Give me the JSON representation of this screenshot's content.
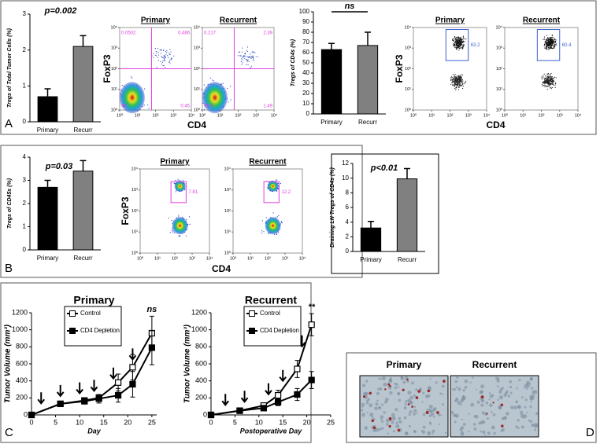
{
  "panel_labels": [
    "A",
    "B",
    "C",
    "D"
  ],
  "chart_data": [
    {
      "type": "bar",
      "ylabel": "Tregs of Total Tumor Cells (%)",
      "annotation": "p=0.002",
      "categories": [
        "Primary",
        "Recurr"
      ],
      "values": [
        0.7,
        2.1
      ],
      "errors": [
        0.22,
        0.3
      ],
      "colors": [
        "#000000",
        "#808080"
      ],
      "ylim": [
        0,
        3
      ],
      "yticks": [
        0,
        1,
        2,
        3
      ]
    },
    {
      "type": "flow",
      "xlabel": "CD4",
      "ylabel": "FoxP3",
      "log": true,
      "plot_style": "density",
      "gate": "quadrant",
      "gate_color": "#e040e0",
      "xlim": [
        1,
        10000
      ],
      "ylim": [
        1,
        10000
      ],
      "xticks": [
        {
          "value": 1,
          "label": "10⁰"
        },
        {
          "value": 10,
          "label": "10¹"
        },
        {
          "value": 100,
          "label": "10²"
        },
        {
          "value": 1000,
          "label": "10³"
        },
        {
          "value": 10000,
          "label": "10⁴"
        }
      ],
      "yticks": [
        {
          "value": 1,
          "label": "10⁰"
        },
        {
          "value": 10,
          "label": "10¹"
        },
        {
          "value": 100,
          "label": "10²"
        },
        {
          "value": 1000,
          "label": "10³"
        },
        {
          "value": 10000,
          "label": "10⁴"
        }
      ],
      "panels": [
        {
          "title": "Primary",
          "gate_labels": [
            0.0502,
            0.486,
            99,
            0.45
          ]
        },
        {
          "title": "Recurrent",
          "gate_labels": [
            0.217,
            2.39,
            95.9,
            1.49
          ]
        }
      ]
    },
    {
      "type": "bar",
      "ylabel": "Tregs of CD4s (%)",
      "annotation": "ns",
      "bracket": true,
      "categories": [
        "Primary",
        "Recurr"
      ],
      "values": [
        63,
        67
      ],
      "errors": [
        6,
        13
      ],
      "colors": [
        "#000000",
        "#808080"
      ],
      "ylim": [
        0,
        100
      ],
      "yticks": [
        0,
        10,
        20,
        30,
        40,
        50,
        60,
        70,
        80,
        90,
        100
      ]
    },
    {
      "type": "flow",
      "xlabel": "CD4",
      "ylabel": "FoxP3",
      "log": true,
      "plot_style": "dot",
      "gate": "box",
      "gate_color": "#3a5fd0",
      "xlim": [
        1,
        10000
      ],
      "ylim": [
        1,
        10000
      ],
      "xticks": [
        {
          "value": 1,
          "label": "10⁰"
        },
        {
          "value": 10,
          "label": "10¹"
        },
        {
          "value": 100,
          "label": "10²"
        },
        {
          "value": 1000,
          "label": "10³"
        },
        {
          "value": 10000,
          "label": "10⁴"
        }
      ],
      "yticks": [
        {
          "value": 1,
          "label": "10⁰"
        },
        {
          "value": 10,
          "label": "10¹"
        },
        {
          "value": 100,
          "label": "10²"
        },
        {
          "value": 1000,
          "label": "10³"
        },
        {
          "value": 10000,
          "label": "10⁴"
        }
      ],
      "panels": [
        {
          "title": "Primary",
          "gate_labels": [
            63.2
          ]
        },
        {
          "title": "Recurrent",
          "gate_labels": [
            60.4
          ]
        }
      ]
    },
    {
      "type": "bar",
      "ylabel": "Tregs of CD45s (%)",
      "annotation": "p=0.03",
      "categories": [
        "Primary",
        "Recurr"
      ],
      "values": [
        2.7,
        3.4
      ],
      "errors": [
        0.3,
        0.45
      ],
      "colors": [
        "#000000",
        "#808080"
      ],
      "ylim": [
        0,
        4
      ],
      "yticks": [
        0,
        1,
        2,
        3,
        4
      ]
    },
    {
      "type": "flow",
      "xlabel": "CD4",
      "ylabel": "FoxP3",
      "log": true,
      "plot_style": "density",
      "gate": "box",
      "gate_color": "#e040e0",
      "xlim": [
        1,
        10000
      ],
      "ylim": [
        1,
        10000
      ],
      "xticks": [
        {
          "value": 1,
          "label": "10⁰"
        },
        {
          "value": 10,
          "label": "10¹"
        },
        {
          "value": 100,
          "label": "10²"
        },
        {
          "value": 1000,
          "label": "10³"
        },
        {
          "value": 10000,
          "label": "10⁴"
        }
      ],
      "yticks": [
        {
          "value": 1,
          "label": "10⁰"
        },
        {
          "value": 10,
          "label": "10¹"
        },
        {
          "value": 100,
          "label": "10²"
        },
        {
          "value": 1000,
          "label": "10³"
        },
        {
          "value": 10000,
          "label": "10⁴"
        }
      ],
      "panels": [
        {
          "title": "Primary",
          "gate_labels": [
            7.81
          ]
        },
        {
          "title": "Recurrent",
          "gate_labels": [
            12.2
          ]
        }
      ]
    },
    {
      "type": "bar",
      "ylabel": "Draining LN Tregs of CD4s (%)",
      "annotation": "p<0.01",
      "categories": [
        "Primary",
        "Recurr"
      ],
      "values": [
        3.2,
        9.9
      ],
      "errors": [
        0.9,
        1.4
      ],
      "colors": [
        "#000000",
        "#808080"
      ],
      "ylim": [
        0,
        12
      ],
      "yticks": [
        0,
        2,
        4,
        6,
        8,
        10,
        12
      ]
    },
    {
      "type": "line",
      "title": "Primary",
      "xlabel": "Day",
      "ylabel": "Tumor Volume (mm³)",
      "annotation": "ns",
      "legend": "upper left",
      "x": [
        0,
        6,
        11,
        14,
        18,
        21,
        25
      ],
      "xlim": [
        0,
        26
      ],
      "xticks": [
        0,
        5,
        10,
        15,
        20,
        25
      ],
      "ylim": [
        0,
        1200
      ],
      "yticks": [
        0,
        200,
        400,
        600,
        800,
        1000,
        1200
      ],
      "arrows": [
        2,
        6,
        10,
        13,
        17,
        21
      ],
      "series": [
        {
          "name": "Control",
          "color": "#000000",
          "fill": "#ffffff",
          "values": [
            0,
            130,
            170,
            200,
            380,
            560,
            960
          ],
          "errors": [
            0,
            10,
            20,
            40,
            100,
            150,
            200
          ]
        },
        {
          "name": "CD4 Depletion",
          "color": "#000000",
          "fill": "#000000",
          "values": [
            0,
            130,
            160,
            190,
            230,
            360,
            790
          ],
          "errors": [
            0,
            10,
            20,
            50,
            80,
            150,
            200
          ]
        }
      ]
    },
    {
      "type": "line",
      "title": "Recurrent",
      "xlabel": "Postoperative Day",
      "ylabel": "Tumor Volume (mm³)",
      "annotation": "**",
      "legend": "upper left",
      "x": [
        0,
        6,
        11,
        14,
        18,
        21
      ],
      "xlim": [
        0,
        25
      ],
      "xticks": [
        0,
        5,
        10,
        15,
        20,
        25
      ],
      "ylim": [
        0,
        1200
      ],
      "yticks": [
        0,
        200,
        400,
        600,
        800,
        1000,
        1200
      ],
      "arrows": [
        3,
        7,
        12,
        15,
        19
      ],
      "series": [
        {
          "name": "Control",
          "color": "#000000",
          "fill": "#ffffff",
          "values": [
            0,
            50,
            110,
            230,
            540,
            1060
          ],
          "errors": [
            0,
            10,
            30,
            60,
            100,
            130
          ]
        },
        {
          "name": "CD4 Depletion",
          "color": "#000000",
          "fill": "#000000",
          "values": [
            0,
            50,
            80,
            150,
            240,
            410
          ],
          "errors": [
            0,
            10,
            30,
            40,
            70,
            100
          ]
        }
      ]
    }
  ],
  "images": [
    {
      "title": "Primary"
    },
    {
      "title": "Recurrent"
    }
  ]
}
